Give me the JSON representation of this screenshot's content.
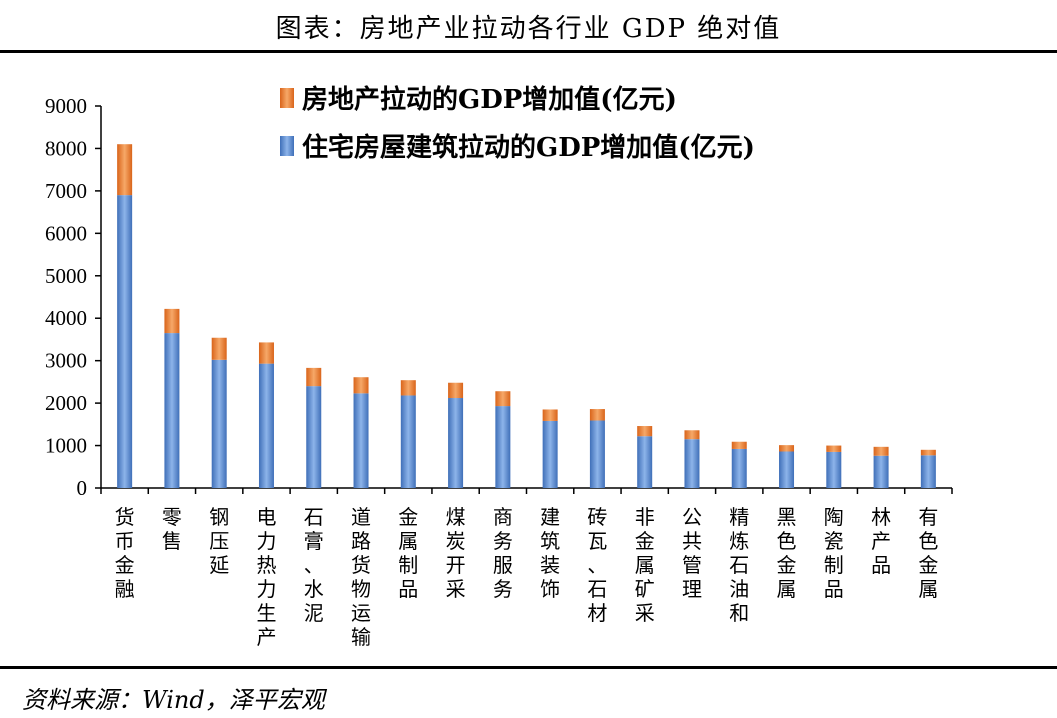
{
  "title": "图表：房地产业拉动各行业 GDP 绝对值",
  "source": "资料来源：Wind，泽平宏观",
  "colors": {
    "series_bottom": "#5b8bd0",
    "series_top": "#ed7d31",
    "axis": "#000000"
  },
  "chart_data": {
    "type": "bar",
    "stacked": true,
    "categories": [
      "货币金融",
      "零售",
      "钢压延",
      "电力热力生产",
      "石膏、水泥",
      "道路货物运输",
      "金属制品",
      "煤炭开采",
      "商务服务",
      "建筑装饰",
      "砖瓦、石材",
      "非金属矿采",
      "公共管理",
      "精炼石油和",
      "黑色金属",
      "陶瓷制品",
      "林产品",
      "有色金属"
    ],
    "series": [
      {
        "name": "住宅房屋建筑拉动的GDP增加值(亿元)",
        "values": [
          6900,
          3650,
          3020,
          2930,
          2400,
          2230,
          2180,
          2120,
          1930,
          1580,
          1590,
          1220,
          1150,
          920,
          860,
          850,
          760,
          770
        ]
      },
      {
        "name": "房地产拉动的GDP增加值(亿元)",
        "values": [
          1200,
          570,
          520,
          500,
          430,
          380,
          360,
          360,
          350,
          270,
          270,
          240,
          210,
          170,
          150,
          150,
          210,
          130
        ]
      }
    ],
    "ylim": [
      0,
      9000
    ],
    "yticks": [
      0,
      1000,
      2000,
      3000,
      4000,
      5000,
      6000,
      7000,
      8000,
      9000
    ],
    "legend_position": "top-center",
    "grid": false
  }
}
